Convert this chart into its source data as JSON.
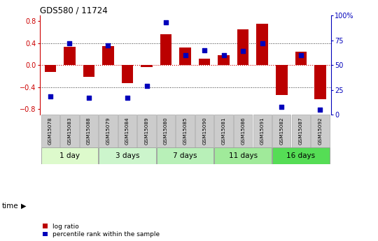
{
  "title": "GDS580 / 11724",
  "samples": [
    "GSM15078",
    "GSM15083",
    "GSM15088",
    "GSM15079",
    "GSM15084",
    "GSM15089",
    "GSM15080",
    "GSM15085",
    "GSM15090",
    "GSM15081",
    "GSM15086",
    "GSM15091",
    "GSM15082",
    "GSM15087",
    "GSM15092"
  ],
  "log_ratio": [
    -0.13,
    0.33,
    -0.22,
    0.34,
    -0.33,
    -0.04,
    0.56,
    0.32,
    0.12,
    0.18,
    0.65,
    0.75,
    -0.55,
    0.25,
    -0.62
  ],
  "percentile": [
    18,
    72,
    17,
    70,
    17,
    29,
    93,
    60,
    65,
    60,
    64,
    72,
    8,
    60,
    5
  ],
  "groups": [
    {
      "label": "1 day",
      "start": 0,
      "end": 3,
      "color": "#ddfacc"
    },
    {
      "label": "3 days",
      "start": 3,
      "end": 6,
      "color": "#ccf5cc"
    },
    {
      "label": "7 days",
      "start": 6,
      "end": 9,
      "color": "#b8f0b8"
    },
    {
      "label": "11 days",
      "start": 9,
      "end": 12,
      "color": "#a0ea9a"
    },
    {
      "label": "16 days",
      "start": 12,
      "end": 15,
      "color": "#55dd55"
    }
  ],
  "bar_color": "#bb0000",
  "dot_color": "#0000bb",
  "ylim_left": [
    -0.9,
    0.9
  ],
  "ylim_right": [
    0,
    100
  ],
  "yticks_left": [
    -0.8,
    -0.4,
    0.0,
    0.4,
    0.8
  ],
  "yticks_right": [
    0,
    25,
    50,
    75,
    100
  ],
  "hline_zero_color": "#cc0000",
  "hline_dotted_color": "#333333",
  "label_log_ratio": "log ratio",
  "label_percentile": "percentile rank within the sample",
  "sample_box_color": "#cccccc",
  "sample_box_edge": "#aaaaaa"
}
